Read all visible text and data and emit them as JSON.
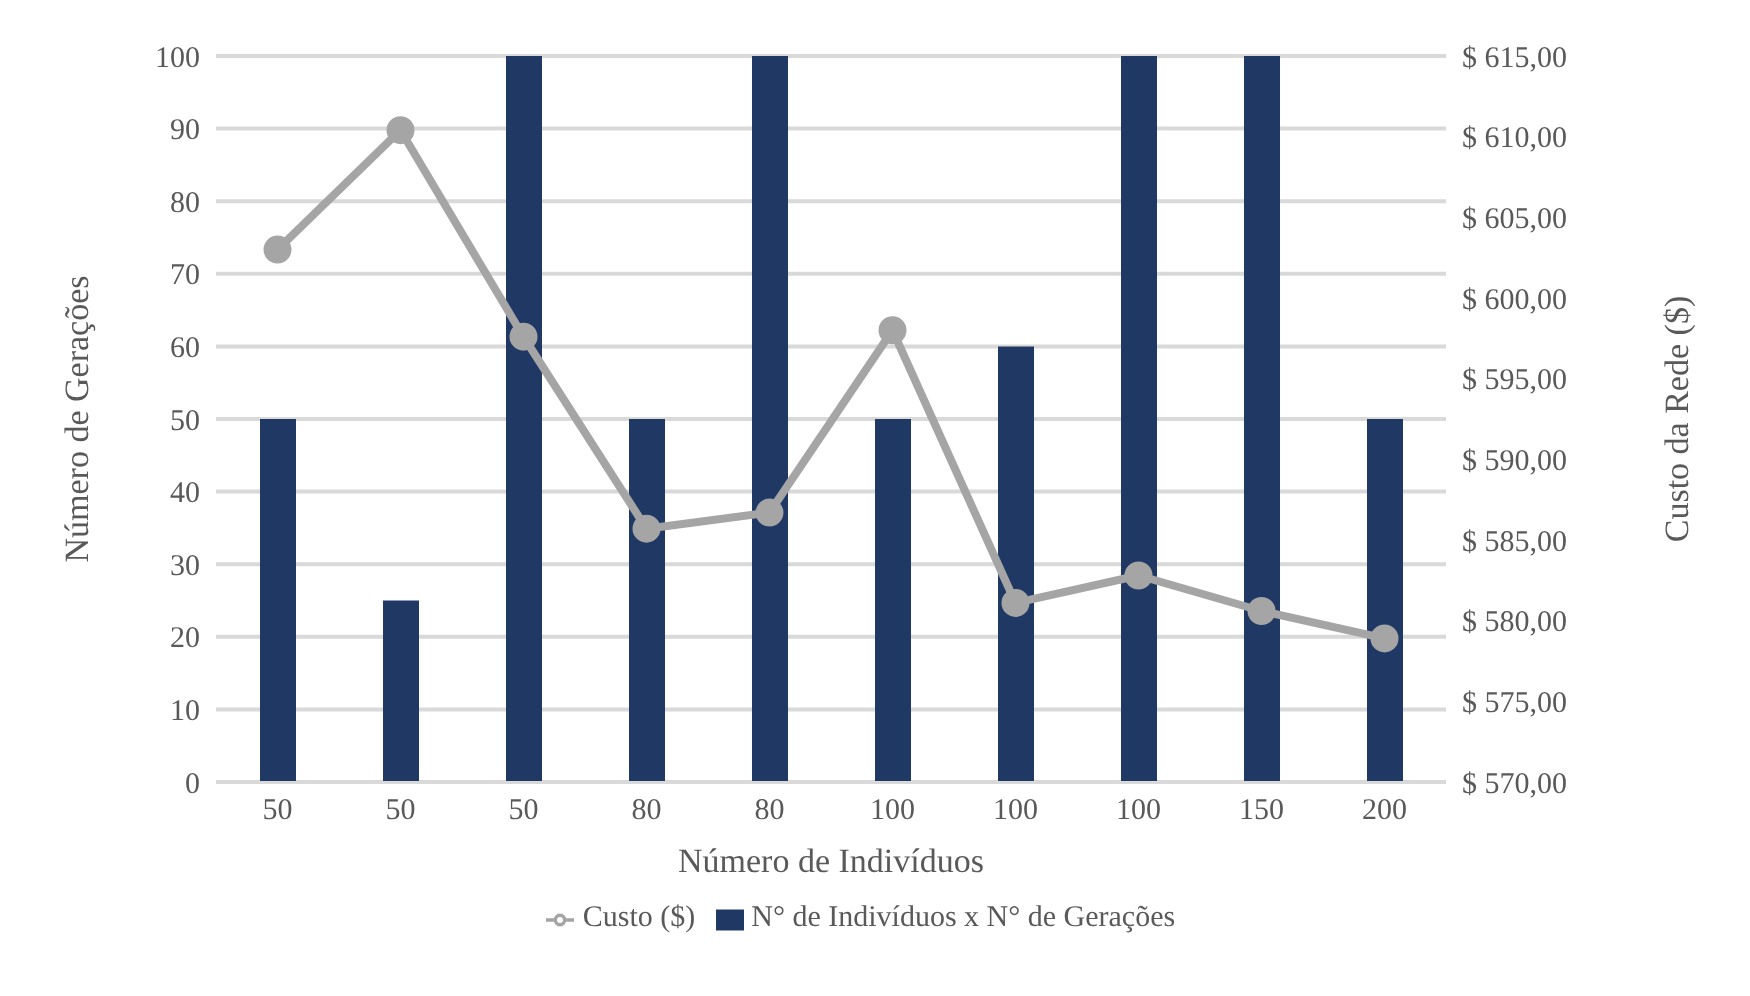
{
  "chart_data": {
    "type": "bar",
    "xlabel": "Número de Indivíduos",
    "ylabel": "Número de Gerações",
    "y2label": "Custo da Rede ($)",
    "categories": [
      "50",
      "50",
      "50",
      "80",
      "80",
      "100",
      "100",
      "100",
      "150",
      "200"
    ],
    "series": [
      {
        "name": "N° de Indivíduos x N° de Gerações",
        "color": "#1f3864",
        "values": [
          50,
          25,
          100,
          50,
          100,
          50,
          60,
          100,
          100,
          50
        ]
      },
      {
        "name": "Custo ($)",
        "type": "line",
        "axis": "y2",
        "color": "#a5a5a5",
        "marker": "circle",
        "values": [
          603,
          610.4,
          597.6,
          585.7,
          586.7,
          598,
          581.1,
          582.8,
          580.6,
          578.9
        ]
      }
    ],
    "ylim": [
      0,
      100
    ],
    "yticks": [
      0,
      10,
      20,
      30,
      40,
      50,
      60,
      70,
      80,
      90,
      100
    ],
    "y2lim": [
      570,
      615
    ],
    "y2ticks": [
      {
        "value": 570,
        "label": "$ 570,00"
      },
      {
        "value": 575,
        "label": "$ 575,00"
      },
      {
        "value": 580,
        "label": "$ 580,00"
      },
      {
        "value": 585,
        "label": "$ 585,00"
      },
      {
        "value": 590,
        "label": "$ 590,00"
      },
      {
        "value": 595,
        "label": "$ 595,00"
      },
      {
        "value": 600,
        "label": "$ 600,00"
      },
      {
        "value": 605,
        "label": "$ 605,00"
      },
      {
        "value": 610,
        "label": "$ 610,00"
      },
      {
        "value": 615,
        "label": "$ 615,00"
      }
    ],
    "grid": "y",
    "legend": "bottom"
  }
}
